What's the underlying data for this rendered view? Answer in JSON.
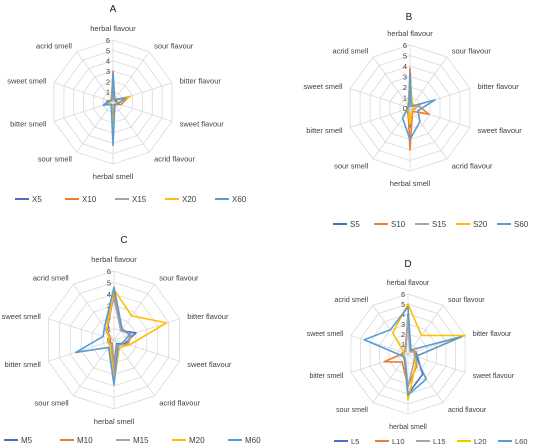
{
  "colors": {
    "grid": "#d9d9d9",
    "text": "#404040",
    "series": [
      "#4472c4",
      "#ed7d31",
      "#a5a5a5",
      "#ffc000",
      "#5b9bd5"
    ]
  },
  "chart_data": [
    {
      "type": "radar",
      "panel_label": "A",
      "axes": [
        "herbal flavour",
        "sour flavour",
        "bitter flavour",
        "sweet flavour",
        "acrid flavour",
        "herbal smell",
        "sour smell",
        "bitter smell",
        "sweet smell",
        "acrid smell"
      ],
      "ticks": [
        "0",
        "1",
        "2",
        "3",
        "4",
        "5",
        "6"
      ],
      "rmax": 6,
      "legend_position": "bottom",
      "series": [
        {
          "name": "X5",
          "values": [
            2.8,
            0.2,
            0.3,
            0.6,
            0.3,
            1.8,
            0.3,
            0.5,
            0.3,
            0.2
          ]
        },
        {
          "name": "X10",
          "values": [
            3.0,
            0.2,
            1.6,
            0.8,
            0.3,
            0.3,
            0.3,
            0.5,
            0.3,
            0.2
          ]
        },
        {
          "name": "X15",
          "values": [
            2.5,
            0.3,
            1.4,
            0.5,
            0.3,
            0.8,
            0.3,
            0.4,
            0.4,
            0.2
          ]
        },
        {
          "name": "X20",
          "values": [
            2.6,
            0.3,
            1.8,
            0.4,
            0.3,
            2.2,
            0.3,
            0.4,
            0.2,
            0.3
          ]
        },
        {
          "name": "X60",
          "values": [
            2.8,
            0.3,
            1.3,
            0.5,
            0.3,
            4.2,
            0.3,
            1.0,
            0.4,
            0.2
          ]
        }
      ]
    },
    {
      "type": "radar",
      "panel_label": "B",
      "axes": [
        "herbal flavour",
        "sour flavour",
        "bitter flavour",
        "sweet flavour",
        "acrid flavour",
        "herbal smell",
        "sour smell",
        "bitter smell",
        "sweet smell",
        "acrid smell"
      ],
      "ticks": [
        "0",
        "1",
        "2",
        "3",
        "4",
        "5",
        "6"
      ],
      "rmax": 6,
      "legend_position": "bottom",
      "series": [
        {
          "name": "S5",
          "values": [
            2.5,
            0.3,
            0.9,
            0.3,
            0.3,
            1.8,
            0.4,
            0.3,
            0.3,
            0.3
          ]
        },
        {
          "name": "S10",
          "values": [
            3.8,
            0.3,
            0.8,
            1.9,
            0.4,
            4.0,
            0.3,
            0.3,
            0.3,
            0.2
          ]
        },
        {
          "name": "S15",
          "values": [
            2.6,
            0.2,
            1.0,
            0.4,
            0.3,
            1.6,
            0.2,
            0.3,
            0.2,
            0.2
          ]
        },
        {
          "name": "S20",
          "values": [
            2.8,
            0.4,
            0.7,
            0.3,
            0.3,
            1.5,
            0.3,
            0.3,
            0.2,
            0.3
          ]
        },
        {
          "name": "S60",
          "values": [
            3.3,
            0.2,
            2.5,
            0.8,
            1.6,
            3.0,
            1.2,
            0.3,
            0.2,
            0.2
          ]
        }
      ]
    },
    {
      "type": "radar",
      "panel_label": "C",
      "axes": [
        "herbal flavour",
        "sour flavour",
        "bitter flavour",
        "sweet flavour",
        "acrid flavour",
        "herbal smell",
        "sour smell",
        "bitter smell",
        "sweet smell",
        "acrid smell"
      ],
      "ticks": [
        "0",
        "1",
        "2",
        "3",
        "4",
        "5",
        "6"
      ],
      "rmax": 6,
      "legend_position": "bottom",
      "series": [
        {
          "name": "M5",
          "values": [
            4.3,
            1.0,
            2.0,
            1.0,
            0.4,
            2.2,
            0.4,
            0.5,
            0.3,
            1.0
          ]
        },
        {
          "name": "M10",
          "values": [
            3.9,
            1.2,
            1.5,
            1.2,
            0.5,
            2.3,
            0.3,
            0.6,
            0.3,
            1.1
          ]
        },
        {
          "name": "M15",
          "values": [
            3.6,
            1.0,
            1.6,
            1.3,
            0.5,
            2.8,
            0.4,
            0.5,
            0.4,
            1.4
          ]
        },
        {
          "name": "M20",
          "values": [
            4.4,
            2.6,
            4.8,
            1.4,
            0.8,
            3.6,
            0.6,
            0.6,
            0.4,
            1.1
          ]
        },
        {
          "name": "M60",
          "values": [
            4.6,
            1.2,
            1.4,
            0.8,
            0.6,
            3.9,
            0.8,
            3.5,
            1.0,
            1.4
          ]
        }
      ]
    },
    {
      "type": "radar",
      "panel_label": "D",
      "axes": [
        "herbal flavour",
        "sour flavour",
        "bitter flavour",
        "sweet flavour",
        "acrid flavour",
        "herbal smell",
        "sour smell",
        "bitter smell",
        "sweet smell",
        "acrid smell"
      ],
      "ticks": [
        "0",
        "1",
        "2",
        "3",
        "4",
        "5",
        "6"
      ],
      "rmax": 6,
      "legend_position": "bottom",
      "series": [
        {
          "name": "L5",
          "values": [
            4.0,
            0.4,
            0.8,
            1.0,
            2.5,
            4.0,
            0.5,
            0.6,
            0.4,
            0.4
          ]
        },
        {
          "name": "L10",
          "values": [
            3.6,
            0.5,
            0.8,
            0.8,
            1.5,
            3.2,
            1.0,
            2.5,
            0.4,
            0.5
          ]
        },
        {
          "name": "L15",
          "values": [
            3.8,
            0.3,
            0.6,
            0.7,
            1.0,
            3.3,
            0.5,
            0.5,
            0.5,
            0.4
          ]
        },
        {
          "name": "L20",
          "values": [
            5.0,
            2.3,
            6.0,
            0.8,
            1.3,
            4.6,
            0.6,
            0.5,
            0.4,
            2.6
          ]
        },
        {
          "name": "L60",
          "values": [
            4.7,
            0.5,
            5.6,
            0.8,
            3.1,
            4.1,
            0.6,
            0.6,
            4.6,
            3.0
          ]
        }
      ]
    }
  ]
}
